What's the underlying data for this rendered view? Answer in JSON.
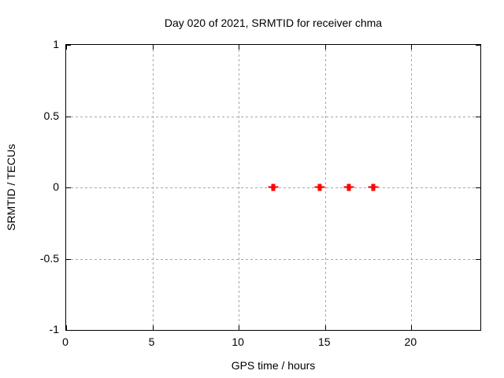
{
  "chart_data": {
    "type": "scatter",
    "title": "Day 020 of 2021, SRMTID for receiver chma",
    "xlabel": "GPS time / hours",
    "ylabel": "SRMTID / TECUs",
    "xlim": [
      0,
      24
    ],
    "ylim": [
      -1,
      1
    ],
    "xticks": [
      {
        "value": 0,
        "label": "0"
      },
      {
        "value": 5,
        "label": "5"
      },
      {
        "value": 10,
        "label": "10"
      },
      {
        "value": 15,
        "label": "15"
      },
      {
        "value": 20,
        "label": "20"
      }
    ],
    "yticks": [
      {
        "value": 1,
        "label": "1"
      },
      {
        "value": 0.5,
        "label": "0.5"
      },
      {
        "value": 0,
        "label": "0"
      },
      {
        "value": -0.5,
        "label": "-0.5"
      },
      {
        "value": -1,
        "label": "-1"
      }
    ],
    "grid": {
      "x_values": [
        5,
        10,
        15,
        20
      ],
      "y_values": [
        0.5,
        0,
        -0.5
      ]
    },
    "legend": "none",
    "series": [
      {
        "name": "SRMTID",
        "marker": "errorbar-point",
        "color": "#ff0000",
        "points": [
          {
            "x": 12.0,
            "y": 0
          },
          {
            "x": 14.7,
            "y": 0
          },
          {
            "x": 16.4,
            "y": 0
          },
          {
            "x": 17.8,
            "y": 0
          }
        ]
      }
    ]
  },
  "colors": {
    "background": "#ffffff",
    "frame": "#000000",
    "grid": "#a8a8a8",
    "text": "#000000",
    "marker": "#ff0000"
  }
}
